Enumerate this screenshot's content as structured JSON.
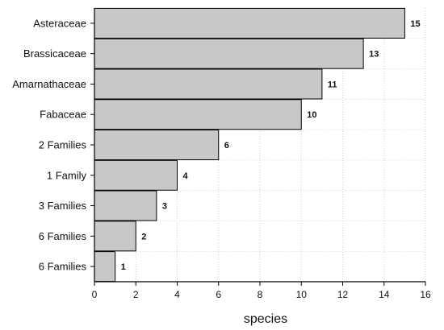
{
  "chart_data": {
    "type": "bar",
    "orientation": "horizontal",
    "categories": [
      "Asteraceae",
      "Brassicaceae",
      "Amarnathaceae",
      "Fabaceae",
      "2 Families",
      "1 Family",
      "3 Families",
      "6 Families",
      "6 Families"
    ],
    "values": [
      15,
      13,
      11,
      10,
      6,
      4,
      3,
      2,
      1
    ],
    "data_labels": [
      "15",
      "13",
      "11",
      "10",
      "6",
      "4",
      "3",
      "2",
      "1"
    ],
    "xlabel": "species",
    "xlim": [
      0,
      16
    ],
    "xticks": [
      "0",
      "2",
      "4",
      "6",
      "8",
      "10",
      "12",
      "14",
      "16"
    ],
    "bar_color": "#c8c8c8",
    "bar_edge_color": "#000000",
    "grid": "vertical dotted"
  }
}
